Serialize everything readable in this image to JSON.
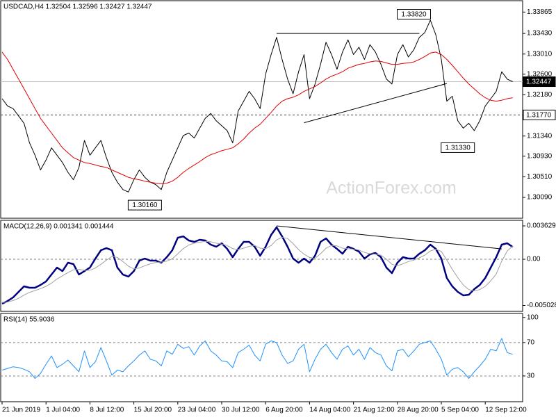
{
  "chart_data": [
    {
      "type": "line",
      "title": "USDCAD,H4  1.32504 1.32596 1.32427 1.32447",
      "watermark": "ActionForex.com",
      "ylim": [
        1.2968,
        1.3404
      ],
      "yticks": [
        1.33865,
        {
          "value": 1.3343,
          "label": "1.33430"
        },
        {
          "value": 1.3301,
          "label": "1.33010"
        },
        {
          "value": 1.326,
          "label": "1.32600"
        },
        {
          "value": 1.3218,
          "label": "1.32180"
        },
        {
          "value": 1.3134,
          "label": "1.31340"
        },
        {
          "value": 1.3093,
          "label": "1.30930"
        },
        {
          "value": 1.3051,
          "label": "1.30510"
        },
        {
          "value": 1.3009,
          "label": "1.30090"
        }
      ],
      "series": [
        {
          "color": "#000000",
          "values": [
            1.321,
            1.3195,
            1.319,
            1.3175,
            1.316,
            1.312,
            1.3095,
            1.3065,
            1.3085,
            1.311,
            1.3095,
            1.308,
            1.306,
            1.3045,
            1.307,
            1.3125,
            1.3095,
            1.311,
            1.3125,
            1.309,
            1.306,
            1.304,
            1.3025,
            1.302,
            1.3045,
            1.3065,
            1.305,
            1.304,
            1.3035,
            1.3025,
            1.306,
            1.3085,
            1.311,
            1.3135,
            1.314,
            1.313,
            1.315,
            1.317,
            1.318,
            1.3165,
            1.3155,
            1.3145,
            1.312,
            1.3185,
            1.3205,
            1.3225,
            1.321,
            1.319,
            1.326,
            1.33,
            1.3335,
            1.329,
            1.325,
            1.322,
            1.3265,
            1.33,
            1.321,
            1.324,
            1.328,
            1.3325,
            1.33,
            1.327,
            1.3305,
            1.333,
            1.33,
            1.3315,
            1.329,
            1.332,
            1.3305,
            1.328,
            1.325,
            1.324,
            1.33,
            1.332,
            1.3295,
            1.331,
            1.3335,
            1.3345,
            1.337,
            1.334,
            1.329,
            1.3205,
            1.3215,
            1.3165,
            1.315,
            1.316,
            1.3145,
            1.3165,
            1.3195,
            1.321,
            1.3225,
            1.3265,
            1.325,
            1.32447
          ]
        },
        {
          "color": "#e00000",
          "values": [
            1.3305,
            1.329,
            1.327,
            1.325,
            1.323,
            1.321,
            1.319,
            1.317,
            1.3155,
            1.314,
            1.3125,
            1.311,
            1.31,
            1.309,
            1.3085,
            1.308,
            1.3078,
            1.3075,
            1.3072,
            1.307,
            1.3065,
            1.306,
            1.3055,
            1.305,
            1.3047,
            1.3045,
            1.3042,
            1.304,
            1.3038,
            1.3037,
            1.3038,
            1.3042,
            1.305,
            1.306,
            1.3068,
            1.3075,
            1.3082,
            1.309,
            1.3096,
            1.31,
            1.3104,
            1.3107,
            1.311,
            1.3118,
            1.3128,
            1.314,
            1.315,
            1.3158,
            1.317,
            1.3182,
            1.3195,
            1.3205,
            1.321,
            1.3213,
            1.3218,
            1.3225,
            1.323,
            1.3235,
            1.3242,
            1.325,
            1.3256,
            1.326,
            1.3265,
            1.3272,
            1.3276,
            1.328,
            1.3282,
            1.3285,
            1.3287,
            1.3286,
            1.3283,
            1.328,
            1.328,
            1.3282,
            1.3283,
            1.3285,
            1.329,
            1.3296,
            1.3303,
            1.3305,
            1.33,
            1.329,
            1.3278,
            1.3265,
            1.3252,
            1.324,
            1.323,
            1.322,
            1.3212,
            1.3207,
            1.3205,
            1.3207,
            1.321,
            1.3212
          ]
        }
      ],
      "trendlines": [
        {
          "x": [
            50,
            76
          ],
          "y": [
            1.3343,
            1.3343
          ]
        },
        {
          "x": [
            55,
            81
          ],
          "y": [
            1.3161,
            1.3241
          ]
        }
      ],
      "price_tags": [
        {
          "value": 1.32447,
          "label": "1.32447",
          "style": "dark"
        },
        {
          "value": 1.3177,
          "label": "1.31770",
          "style": "light"
        }
      ],
      "annotations": [
        {
          "text": "1.33820",
          "value": 1.3382,
          "x": 75,
          "kind": "high"
        },
        {
          "text": "1.31330",
          "value": 1.3133,
          "x": 83,
          "kind": "low"
        },
        {
          "text": "1.30160",
          "value": 1.3016,
          "x": 26,
          "kind": "low"
        }
      ]
    },
    {
      "type": "line",
      "title": "MACD(12,26,9) 0.001341 0.001444",
      "ylim": [
        -0.00567,
        0.00416
      ],
      "yticks": [
        0.003629,
        {
          "value": 0,
          "label": "0.00"
        },
        -0.005028
      ],
      "levels": [
        0
      ],
      "series": [
        {
          "color": "#000080",
          "values": [
            -0.00484,
            -0.00454,
            -0.00416,
            -0.00355,
            -0.00295,
            -0.0031,
            -0.0031,
            -0.0028,
            -0.00242,
            -0.00166,
            -0.00091,
            -0.00129,
            -0.00038,
            -0.00053,
            -0.00166,
            -0.00129,
            -0.00091,
            8e-05,
            0.00098,
            0.00121,
            0.00098,
            -0.00091,
            -0.00166,
            -0.00189,
            -0.00129,
            -0.00015,
            8e-05,
            -0.00015,
            -0.00015,
            -0.00038,
            0.00023,
            0.00098,
            0.00234,
            0.00249,
            0.00204,
            0.00189,
            0.00212,
            0.00204,
            0.00159,
            0.00136,
            0.00174,
            0.00113,
            0.00023,
            0.00113,
            0.00189,
            0.00189,
            0.00136,
            0.00038,
            0.00136,
            0.00265,
            0.00348,
            0.00249,
            0.00136,
            8e-05,
            -0.00038,
            8e-05,
            -0.00038,
            0.00038,
            0.00189,
            0.00227,
            0.00159,
            0.00113,
            0.0006,
            0.00136,
            0.00113,
            0.00083,
            8e-05,
            0.00053,
            0.00068,
            0.00023,
            -0.00091,
            -0.00151,
            -0.00038,
            0.00023,
            8e-05,
            8e-05,
            0.0006,
            0.00098,
            0.00159,
            0.00113,
            8e-05,
            -0.00204,
            -0.00295,
            -0.00355,
            -0.00393,
            -0.00386,
            -0.00325,
            -0.0028,
            -0.00204,
            -0.00091,
            0.00023,
            0.00159,
            0.00174,
            0.00134
          ]
        },
        {
          "color": "#a0a0a0",
          "values": [
            -0.0047,
            -0.00465,
            -0.0045,
            -0.00425,
            -0.0039,
            -0.0036,
            -0.0034,
            -0.0032,
            -0.00295,
            -0.0026,
            -0.00215,
            -0.0018,
            -0.00145,
            -0.00115,
            -0.0011,
            -0.0012,
            -0.0012,
            -0.00095,
            -0.00055,
            -0.0001,
            0.0003,
            0.0002,
            -0.00025,
            -0.00075,
            -0.00105,
            -0.00095,
            -0.0007,
            -0.0005,
            -0.00035,
            -0.0003,
            -0.0002,
            5e-05,
            0.0006,
            0.00115,
            0.00155,
            0.00175,
            0.00185,
            0.00195,
            0.0019,
            0.00175,
            0.00165,
            0.0015,
            0.00115,
            0.00105,
            0.0012,
            0.0014,
            0.0015,
            0.0012,
            0.00115,
            0.0015,
            0.0021,
            0.0024,
            0.00225,
            0.0017,
            0.00105,
            0.00055,
            0.0002,
            0.0001,
            0.0006,
            0.0012,
            0.0015,
            0.00145,
            0.0012,
            0.00115,
            0.0011,
            0.001,
            0.00075,
            0.0006,
            0.00055,
            0.00045,
            0.0,
            -0.00055,
            -0.0007,
            -0.0005,
            -0.00025,
            -0.0001,
            0.00015,
            0.00045,
            0.0009,
            0.0011,
            0.00085,
            -0.0001,
            -0.0011,
            -0.002,
            -0.0028,
            -0.0033,
            -0.00345,
            -0.0033,
            -0.00295,
            -0.00235,
            -0.0016,
            -0.0002,
            0.0009,
            0.00144
          ]
        }
      ],
      "trendlines": [
        {
          "x": [
            50,
            91
          ],
          "y": [
            0.00363,
            0.00113
          ]
        }
      ]
    },
    {
      "type": "line",
      "title": "RSI(14) 55.9036",
      "ylim": [
        0,
        104
      ],
      "yticks": [
        100,
        70,
        30
      ],
      "levels": [
        70,
        30
      ],
      "categories": [
        "21 Jun 2019",
        null,
        null,
        null,
        null,
        null,
        null,
        null,
        "1 Jul 04:00",
        null,
        null,
        null,
        null,
        null,
        null,
        null,
        "8 Jul 12:00",
        null,
        null,
        null,
        null,
        null,
        null,
        null,
        "15 Jul 20:00",
        null,
        null,
        null,
        null,
        null,
        null,
        null,
        "23 Jul 04:00",
        null,
        null,
        null,
        null,
        null,
        null,
        null,
        "30 Jul 12:00",
        null,
        null,
        null,
        null,
        null,
        null,
        null,
        "6 Aug 20:00",
        null,
        null,
        null,
        null,
        null,
        null,
        null,
        "14 Aug 04:00",
        null,
        null,
        null,
        null,
        null,
        null,
        null,
        "21 Aug 12:00",
        null,
        null,
        null,
        null,
        null,
        null,
        null,
        "28 Aug 20:00",
        null,
        null,
        null,
        null,
        null,
        null,
        null,
        "5 Sep 04:00",
        null,
        null,
        null,
        null,
        null,
        null,
        null,
        "12 Sep 12:00",
        null,
        null,
        null,
        null,
        null
      ],
      "series": [
        {
          "color": "#1e90ff",
          "values": [
            37,
            39,
            41,
            40,
            38,
            35,
            27,
            33,
            44,
            54,
            40,
            44,
            49,
            42,
            35,
            60,
            40,
            47,
            64,
            48,
            31,
            37,
            35,
            42,
            48,
            55,
            60,
            50,
            48,
            42,
            60,
            56,
            68,
            63,
            65,
            55,
            66,
            72,
            60,
            55,
            48,
            47,
            40,
            58,
            62,
            67,
            55,
            48,
            68,
            72,
            70,
            55,
            45,
            48,
            62,
            68,
            35,
            50,
            62,
            68,
            58,
            50,
            62,
            66,
            55,
            62,
            50,
            64,
            58,
            55,
            42,
            36,
            60,
            62,
            53,
            60,
            68,
            70,
            72,
            62,
            50,
            31,
            38,
            40,
            35,
            27,
            35,
            42,
            50,
            62,
            60,
            75,
            58,
            55.9036
          ]
        }
      ]
    }
  ]
}
